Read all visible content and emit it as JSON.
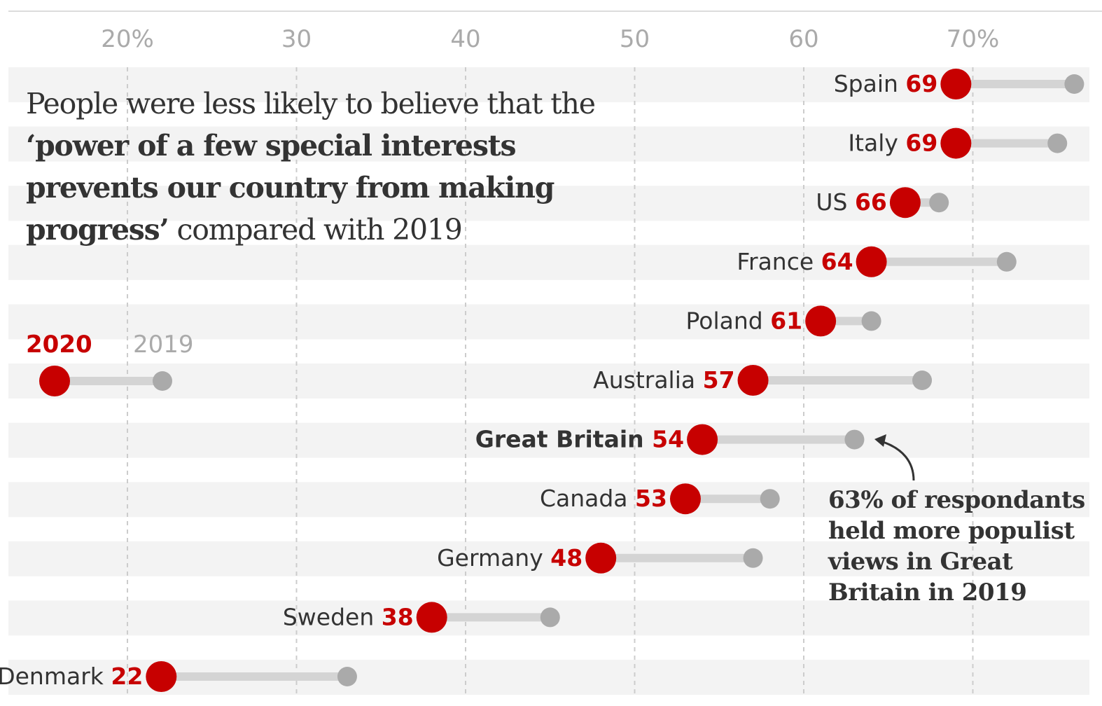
{
  "chart_data": {
    "type": "dumbbell",
    "title": {
      "part1": "People were less likely to believe that the ",
      "bold": "‘power of a few special interests prevents our country from making progress’",
      "part2": " compared with 2019"
    },
    "xlabel": "",
    "ylabel": "",
    "xlim": [
      15.9,
      76.9
    ],
    "x_ticks": [
      20,
      30,
      40,
      50,
      60,
      70
    ],
    "x_tick_labels": [
      "20%",
      "30",
      "40",
      "50",
      "60",
      "70%"
    ],
    "grid": "vertical dashed",
    "legend": {
      "position": "left-middle",
      "entries": [
        {
          "name": "2020",
          "color": "#c70000"
        },
        {
          "name": "2019",
          "color": "#aaaaaa"
        }
      ]
    },
    "categories": [
      "Spain",
      "Italy",
      "US",
      "France",
      "Poland",
      "Australia",
      "Great Britain",
      "Canada",
      "Germany",
      "Sweden",
      "Denmark"
    ],
    "highlighted_category": "Great Britain",
    "series": [
      {
        "name": "2020",
        "color": "#c70000",
        "values": [
          69,
          69,
          66,
          64,
          61,
          57,
          54,
          53,
          48,
          38,
          22
        ]
      },
      {
        "name": "2019",
        "color": "#aaaaaa",
        "values": [
          76,
          75,
          68,
          72,
          64,
          67,
          63,
          58,
          57,
          45,
          33
        ]
      }
    ],
    "annotation": {
      "text": "63% of respondants held more populist views in Great Britain in 2019",
      "lines": [
        "63% of respondants",
        "held more populist",
        "views in Great",
        "Britain in 2019"
      ],
      "target_category": "Great Britain",
      "target_series": "2019"
    }
  },
  "colors": {
    "accent_2020": "#c70000",
    "muted_2019": "#aaaaaa",
    "connector": "#d4d4d4",
    "band": "#f3f3f3",
    "grid": "#cccccc",
    "text": "#333333"
  }
}
